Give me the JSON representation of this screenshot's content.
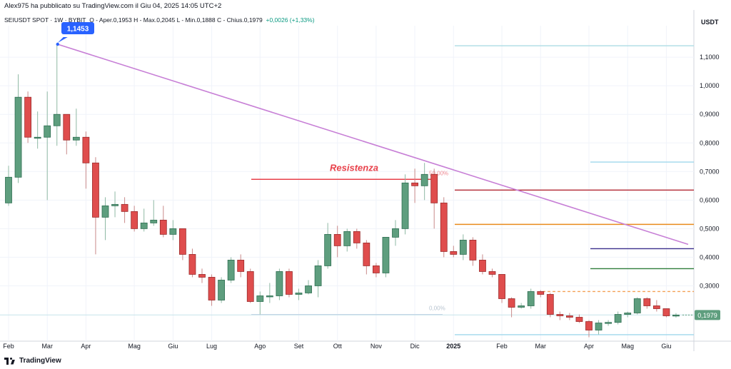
{
  "header": {
    "published": "Alex975 ha pubblicato su TradingView.com il Giu 04, 2025 14:05 UTC+2",
    "symbol": "SEIUSDT SPOT · 1W · BYBIT",
    "ohlc": "O - Aper.0,1953  H - Max.0,2045  L - Min.0,1888  C - Chius.0,1979",
    "change": "+0,0026 (+1,33%)"
  },
  "branding": {
    "name": "TradingView",
    "icon": "tradingview-logo-icon"
  },
  "colors": {
    "up": "#5e9e7e",
    "down": "#df4d4d",
    "trendline": "#c77fd6",
    "resistance": "#e8404a"
  },
  "chart_data": {
    "type": "candlestick",
    "currency": "USDT",
    "timeframe": "1W",
    "ylim": [
      0.08,
      1.2
    ],
    "yticks": [
      "1,1000",
      "1,0000",
      "0,9000",
      "0,8000",
      "0,7000",
      "0,6000",
      "0,5000",
      "0,4000",
      "0,3000"
    ],
    "ytick_values": [
      1.1,
      1.0,
      0.9,
      0.8,
      0.7,
      0.6,
      0.5,
      0.4,
      0.3
    ],
    "xticks": [
      "Feb",
      "Mar",
      "Apr",
      "Mag",
      "Giu",
      "Lug",
      "Ago",
      "Set",
      "Ott",
      "Nov",
      "Dic",
      "2025",
      "Feb",
      "Mar",
      "Apr",
      "Mag",
      "Giu"
    ],
    "xtick_weeks": [
      0,
      4,
      8,
      13,
      17,
      21,
      26,
      30,
      34,
      38,
      42,
      46,
      51,
      55,
      60,
      64,
      68
    ],
    "candles": [
      {
        "o": 0.59,
        "h": 0.72,
        "l": 0.58,
        "c": 0.68
      },
      {
        "o": 0.68,
        "h": 1.04,
        "l": 0.66,
        "c": 0.96
      },
      {
        "o": 0.96,
        "h": 0.98,
        "l": 0.8,
        "c": 0.82
      },
      {
        "o": 0.82,
        "h": 0.91,
        "l": 0.78,
        "c": 0.82
      },
      {
        "o": 0.82,
        "h": 0.98,
        "l": 0.6,
        "c": 0.86
      },
      {
        "o": 0.86,
        "h": 1.1453,
        "l": 0.79,
        "c": 0.9
      },
      {
        "o": 0.9,
        "h": 0.9,
        "l": 0.76,
        "c": 0.81
      },
      {
        "o": 0.81,
        "h": 0.92,
        "l": 0.79,
        "c": 0.82
      },
      {
        "o": 0.82,
        "h": 0.84,
        "l": 0.64,
        "c": 0.73
      },
      {
        "o": 0.73,
        "h": 0.75,
        "l": 0.41,
        "c": 0.54
      },
      {
        "o": 0.54,
        "h": 0.61,
        "l": 0.46,
        "c": 0.58
      },
      {
        "o": 0.58,
        "h": 0.63,
        "l": 0.54,
        "c": 0.585
      },
      {
        "o": 0.585,
        "h": 0.61,
        "l": 0.52,
        "c": 0.56
      },
      {
        "o": 0.56,
        "h": 0.58,
        "l": 0.49,
        "c": 0.5
      },
      {
        "o": 0.5,
        "h": 0.57,
        "l": 0.49,
        "c": 0.52
      },
      {
        "o": 0.52,
        "h": 0.6,
        "l": 0.51,
        "c": 0.53
      },
      {
        "o": 0.53,
        "h": 0.58,
        "l": 0.47,
        "c": 0.48
      },
      {
        "o": 0.48,
        "h": 0.53,
        "l": 0.46,
        "c": 0.5
      },
      {
        "o": 0.5,
        "h": 0.5,
        "l": 0.39,
        "c": 0.41
      },
      {
        "o": 0.41,
        "h": 0.43,
        "l": 0.33,
        "c": 0.34
      },
      {
        "o": 0.34,
        "h": 0.36,
        "l": 0.31,
        "c": 0.33
      },
      {
        "o": 0.33,
        "h": 0.34,
        "l": 0.23,
        "c": 0.25
      },
      {
        "o": 0.25,
        "h": 0.33,
        "l": 0.24,
        "c": 0.32
      },
      {
        "o": 0.32,
        "h": 0.4,
        "l": 0.31,
        "c": 0.39
      },
      {
        "o": 0.39,
        "h": 0.41,
        "l": 0.33,
        "c": 0.35
      },
      {
        "o": 0.35,
        "h": 0.36,
        "l": 0.24,
        "c": 0.245
      },
      {
        "o": 0.245,
        "h": 0.28,
        "l": 0.2,
        "c": 0.265
      },
      {
        "o": 0.265,
        "h": 0.31,
        "l": 0.24,
        "c": 0.265
      },
      {
        "o": 0.265,
        "h": 0.36,
        "l": 0.25,
        "c": 0.35
      },
      {
        "o": 0.35,
        "h": 0.36,
        "l": 0.26,
        "c": 0.27
      },
      {
        "o": 0.27,
        "h": 0.29,
        "l": 0.25,
        "c": 0.275
      },
      {
        "o": 0.275,
        "h": 0.32,
        "l": 0.27,
        "c": 0.3
      },
      {
        "o": 0.3,
        "h": 0.39,
        "l": 0.26,
        "c": 0.37
      },
      {
        "o": 0.37,
        "h": 0.52,
        "l": 0.36,
        "c": 0.48
      },
      {
        "o": 0.48,
        "h": 0.51,
        "l": 0.4,
        "c": 0.44
      },
      {
        "o": 0.44,
        "h": 0.5,
        "l": 0.42,
        "c": 0.49
      },
      {
        "o": 0.49,
        "h": 0.5,
        "l": 0.43,
        "c": 0.45
      },
      {
        "o": 0.45,
        "h": 0.46,
        "l": 0.34,
        "c": 0.37
      },
      {
        "o": 0.37,
        "h": 0.38,
        "l": 0.33,
        "c": 0.345
      },
      {
        "o": 0.345,
        "h": 0.47,
        "l": 0.33,
        "c": 0.47
      },
      {
        "o": 0.47,
        "h": 0.53,
        "l": 0.44,
        "c": 0.5
      },
      {
        "o": 0.5,
        "h": 0.69,
        "l": 0.48,
        "c": 0.66
      },
      {
        "o": 0.66,
        "h": 0.71,
        "l": 0.59,
        "c": 0.65
      },
      {
        "o": 0.65,
        "h": 0.73,
        "l": 0.6,
        "c": 0.69
      },
      {
        "o": 0.69,
        "h": 0.71,
        "l": 0.5,
        "c": 0.59
      },
      {
        "o": 0.59,
        "h": 0.61,
        "l": 0.4,
        "c": 0.42
      },
      {
        "o": 0.42,
        "h": 0.44,
        "l": 0.4,
        "c": 0.41
      },
      {
        "o": 0.41,
        "h": 0.48,
        "l": 0.39,
        "c": 0.46
      },
      {
        "o": 0.46,
        "h": 0.47,
        "l": 0.37,
        "c": 0.39
      },
      {
        "o": 0.39,
        "h": 0.41,
        "l": 0.34,
        "c": 0.35
      },
      {
        "o": 0.35,
        "h": 0.36,
        "l": 0.33,
        "c": 0.34
      },
      {
        "o": 0.34,
        "h": 0.34,
        "l": 0.24,
        "c": 0.255
      },
      {
        "o": 0.255,
        "h": 0.26,
        "l": 0.19,
        "c": 0.225
      },
      {
        "o": 0.225,
        "h": 0.24,
        "l": 0.22,
        "c": 0.23
      },
      {
        "o": 0.23,
        "h": 0.29,
        "l": 0.22,
        "c": 0.28
      },
      {
        "o": 0.28,
        "h": 0.285,
        "l": 0.26,
        "c": 0.27
      },
      {
        "o": 0.27,
        "h": 0.275,
        "l": 0.19,
        "c": 0.2
      },
      {
        "o": 0.2,
        "h": 0.21,
        "l": 0.18,
        "c": 0.195
      },
      {
        "o": 0.195,
        "h": 0.205,
        "l": 0.18,
        "c": 0.19
      },
      {
        "o": 0.19,
        "h": 0.2,
        "l": 0.17,
        "c": 0.175
      },
      {
        "o": 0.175,
        "h": 0.18,
        "l": 0.12,
        "c": 0.145
      },
      {
        "o": 0.145,
        "h": 0.18,
        "l": 0.13,
        "c": 0.17
      },
      {
        "o": 0.17,
        "h": 0.18,
        "l": 0.16,
        "c": 0.172
      },
      {
        "o": 0.172,
        "h": 0.21,
        "l": 0.165,
        "c": 0.2
      },
      {
        "o": 0.2,
        "h": 0.21,
        "l": 0.19,
        "c": 0.205
      },
      {
        "o": 0.205,
        "h": 0.26,
        "l": 0.2,
        "c": 0.255
      },
      {
        "o": 0.255,
        "h": 0.26,
        "l": 0.22,
        "c": 0.23
      },
      {
        "o": 0.23,
        "h": 0.25,
        "l": 0.21,
        "c": 0.22
      },
      {
        "o": 0.22,
        "h": 0.22,
        "l": 0.19,
        "c": 0.195
      },
      {
        "o": 0.1953,
        "h": 0.2045,
        "l": 0.1888,
        "c": 0.1979
      }
    ],
    "trendline": {
      "from": {
        "week": 5,
        "price": 1.1453
      },
      "to": {
        "week": 74,
        "price": 0.44
      }
    },
    "peak_label": "1,1453",
    "resistance": {
      "label": "Resistenza",
      "price": 0.6725,
      "from_week": 26,
      "to_week": 44
    },
    "fib_labels": [
      {
        "text": "50,00%",
        "price": 0.6725
      },
      {
        "text": "0,00%",
        "price": 0.2
      }
    ],
    "horizontal_levels": [
      {
        "price": 1.14,
        "color": "#b2dfe6"
      },
      {
        "price": 0.733,
        "color": "#9fd8ec"
      },
      {
        "price": 0.635,
        "color": "#b22833"
      },
      {
        "price": 0.515,
        "color": "#e98b1c"
      },
      {
        "price": 0.43,
        "color": "#3b2f8c"
      },
      {
        "price": 0.36,
        "color": "#2e7d3a"
      },
      {
        "price": 0.28,
        "color": "#f4a259",
        "dashed": true
      },
      {
        "price": 0.198,
        "color": "#c5e3ea"
      },
      {
        "price": 0.129,
        "color": "#9fd8ec"
      }
    ],
    "last_price": "0,1979",
    "grid": true
  }
}
